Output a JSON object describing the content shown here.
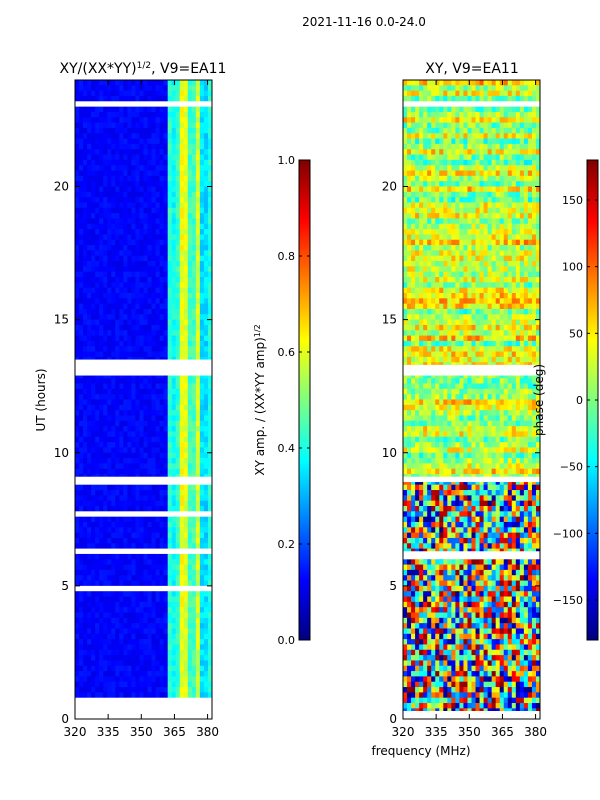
{
  "figure": {
    "suptitle": "2021-11-16 0.0-24.0",
    "shared_xlabel": "frequency (MHz)",
    "colors": {
      "jet_stops": [
        "#00007f",
        "#0000ff",
        "#007fff",
        "#00ffff",
        "#7fff7f",
        "#ffff00",
        "#ff7f00",
        "#ff0000",
        "#7f0000"
      ],
      "flag": "#ffffff",
      "frame": "#000000"
    }
  },
  "chart_data": [
    {
      "type": "heatmap",
      "title": "XY/(XX*YY)^1/2, V9=EA11",
      "title_main": "XY/(XX*YY)",
      "title_sup": "1/2",
      "title_rest": ", V9=EA11",
      "xlabel": "",
      "ylabel": "UT (hours)",
      "xlim": [
        320,
        382
      ],
      "ylim": [
        0,
        24
      ],
      "xticks": [
        320,
        335,
        350,
        365,
        380
      ],
      "yticks": [
        0,
        5,
        10,
        15,
        20
      ],
      "colorbar": {
        "label_main": "XY amp. / (XX*YY amp)",
        "label_sup": "1/2",
        "range": [
          0.0,
          1.0
        ],
        "ticks": [
          "0.0",
          "0.2",
          "0.4",
          "0.6",
          "0.8",
          "1.0"
        ],
        "tick_values": [
          0.0,
          0.2,
          0.4,
          0.6,
          0.8,
          1.0
        ]
      },
      "approx_pattern": "mostly ~0.1 (dark blue) for 320-362 MHz; bright vertical stripes 0.3-0.6 between ~362-380 MHz",
      "flagged_hours": [
        [
          0.0,
          0.8
        ],
        [
          4.8,
          5.0
        ],
        [
          6.2,
          6.4
        ],
        [
          7.6,
          7.8
        ],
        [
          8.8,
          9.1
        ],
        [
          12.9,
          13.5
        ],
        [
          23.0,
          23.2
        ]
      ]
    },
    {
      "type": "heatmap",
      "title": "XY, V9=EA11",
      "xlabel": "",
      "ylabel": "",
      "xlim": [
        320,
        382
      ],
      "ylim": [
        0,
        24
      ],
      "xticks": [
        320,
        335,
        350,
        365,
        380
      ],
      "yticks": [
        0,
        5,
        10,
        15,
        20
      ],
      "colorbar": {
        "label_main": "phase (deg)",
        "label_sup": "",
        "range": [
          -180,
          180
        ],
        "ticks": [
          "−150",
          "−100",
          "−50",
          "0",
          "50",
          "100",
          "150"
        ],
        "tick_values": [
          -150,
          -100,
          -50,
          0,
          50,
          100,
          150
        ]
      },
      "approx_pattern": "noisy phase across full range; mostly -50 to 100 deg above ~9 h, more random below",
      "flagged_hours": [
        [
          0.0,
          0.3
        ],
        [
          6.0,
          6.3
        ],
        [
          8.9,
          9.1
        ],
        [
          12.9,
          13.3
        ],
        [
          23.0,
          23.2
        ]
      ]
    }
  ]
}
